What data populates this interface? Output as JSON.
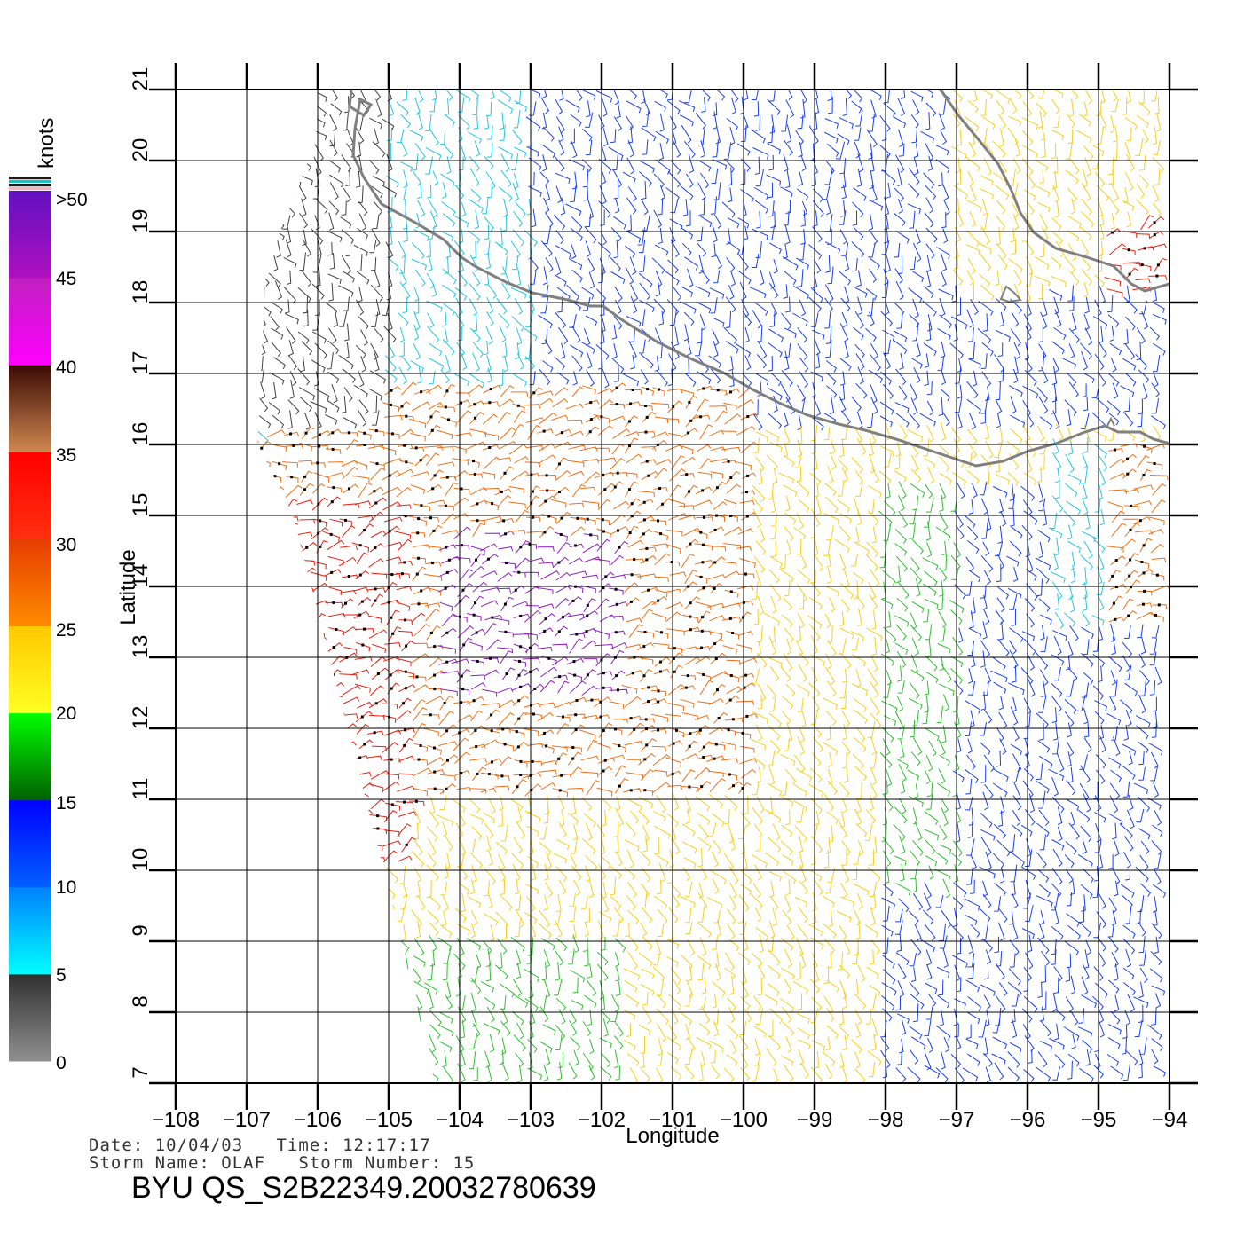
{
  "map": {
    "xlabel": "Longitude",
    "ylabel": "Latitude",
    "lon_range": [
      -108,
      -94
    ],
    "lat_range": [
      7,
      21
    ],
    "lon_ticks": [
      "-108",
      "-107",
      "-106",
      "-105",
      "-104",
      "-103",
      "-102",
      "-101",
      "-100",
      "-99",
      "-98",
      "-97",
      "-96",
      "-95",
      "-94"
    ],
    "lat_ticks": [
      "7",
      "8",
      "9",
      "10",
      "11",
      "12",
      "13",
      "14",
      "15",
      "16",
      "17",
      "18",
      "19",
      "20",
      "21"
    ],
    "coastline_color": "#808080",
    "grid": true
  },
  "colorbar": {
    "title": "knots",
    "labels": [
      ">50",
      "45",
      "40",
      "35",
      "30",
      "25",
      "20",
      "15",
      "10",
      "5",
      "0"
    ],
    "bands": [
      {
        "from": 0,
        "to": 5,
        "top": "#303030",
        "bottom": "#909090"
      },
      {
        "from": 5,
        "to": 10,
        "top": "#0080ff",
        "bottom": "#00ffff"
      },
      {
        "from": 10,
        "to": 15,
        "top": "#0000ff",
        "bottom": "#0060ff"
      },
      {
        "from": 15,
        "to": 20,
        "top": "#00ff00",
        "bottom": "#006000"
      },
      {
        "from": 20,
        "to": 25,
        "top": "#ffc800",
        "bottom": "#ffff20"
      },
      {
        "from": 25,
        "to": 30,
        "top": "#e63c00",
        "bottom": "#ff8c00"
      },
      {
        "from": 30,
        "to": 35,
        "top": "#ff0000",
        "bottom": "#ff3010"
      },
      {
        "from": 35,
        "to": 40,
        "top": "#3a0a05",
        "bottom": "#d08850"
      },
      {
        "from": 40,
        "to": 45,
        "top": "#c020c0",
        "bottom": "#ff00ff"
      },
      {
        "from": 45,
        "to": 50,
        "top": "#6010c0",
        "bottom": "#b010c0"
      }
    ],
    "top_stripes": [
      "#ffb0c0",
      "#1a1a1a",
      "#00d0d0",
      "#1a1a1a"
    ]
  },
  "wind_palette": [
    "#404040",
    "#22c8e0",
    "#1a40f0",
    "#30c030",
    "#f8d020",
    "#f07018",
    "#e82010",
    "#9020c0"
  ],
  "footer": {
    "line1": "Date: 10/04/03   Time: 12:17:17",
    "line2": "Storm Name: OLAF   Storm Number: 15",
    "file_id": "BYU QS_S2B22349.20032780639"
  }
}
